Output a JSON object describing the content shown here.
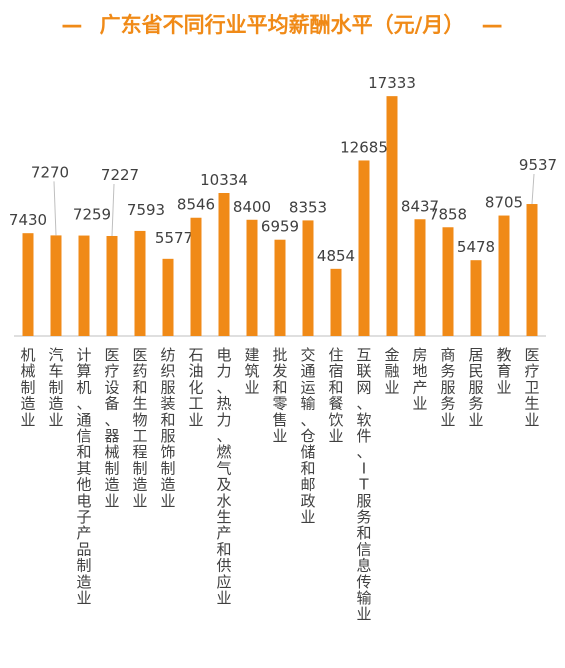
{
  "chart_data": {
    "type": "bar",
    "title": "广东省不同行业平均薪酬水平（元/月）",
    "title_decoration": "—",
    "bar_color": "#F08A17",
    "title_color": "#F08A17",
    "text_color": "#404040",
    "axis_color": "#BFBFBF",
    "grid": false,
    "legend": "none",
    "ylim": [
      0,
      18500
    ],
    "categories": [
      "机械制造业",
      "汽车制造业",
      "计算机、通信和其他电子产品制造业",
      "医疗设备、器械制造业",
      "医药和生物工程制造业",
      "纺织服装和服饰制造业",
      "石油化工业",
      "电力、热力、燃气及水生产和供应业",
      "建筑业",
      "批发和零售业",
      "交通运输、仓储和邮政业",
      "住宿和餐饮业",
      "互联网、软件、IT服务和信息传输业",
      "金融业",
      "房地产业",
      "商务服务业",
      "居民服务业",
      "教育业",
      "医疗卫生业"
    ],
    "values": [
      7430,
      7270,
      7259,
      7227,
      7593,
      5577,
      8546,
      10334,
      8400,
      6959,
      8353,
      4854,
      12685,
      17333,
      8437,
      7858,
      5478,
      8705,
      9537
    ]
  }
}
